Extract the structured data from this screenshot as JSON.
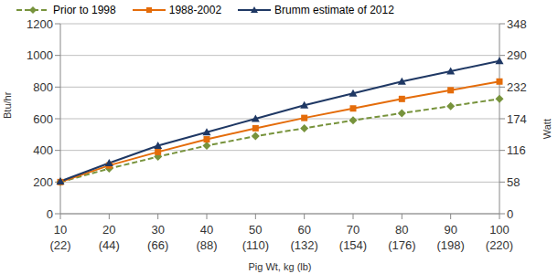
{
  "chart_data": {
    "type": "line",
    "x_label": "Pig Wt, kg (lb)",
    "y_label": "Btu/hr",
    "y2_label": "Watt",
    "categories": [
      "10\n(22)",
      "20\n(44)",
      "30\n(66)",
      "40\n(88)",
      "50\n(110)",
      "60\n(132)",
      "70\n(154)",
      "80\n(176)",
      "90\n(198)",
      "100\n(220)"
    ],
    "series": [
      {
        "name": "Prior to 1998",
        "color": "#77933c",
        "marker": "diamond",
        "line_style": "dashed",
        "values": [
          200,
          285,
          360,
          430,
          490,
          540,
          590,
          635,
          680,
          725
        ]
      },
      {
        "name": "1988-2002",
        "color": "#e46c0a",
        "marker": "square",
        "line_style": "solid",
        "values": [
          200,
          305,
          390,
          470,
          540,
          605,
          665,
          725,
          780,
          835
        ]
      },
      {
        "name": "Brumm estimate of 2012",
        "color": "#1f3864",
        "marker": "triangle",
        "line_style": "solid",
        "values": [
          205,
          320,
          430,
          515,
          600,
          685,
          760,
          835,
          900,
          965
        ]
      }
    ],
    "ylim": [
      0,
      1200
    ],
    "yticks": [
      0,
      200,
      400,
      600,
      800,
      1000,
      1200
    ],
    "y2lim": [
      0,
      348
    ],
    "y2ticks": [
      0,
      58,
      116,
      174,
      232,
      290,
      348
    ],
    "grid": true,
    "legend": "top"
  }
}
